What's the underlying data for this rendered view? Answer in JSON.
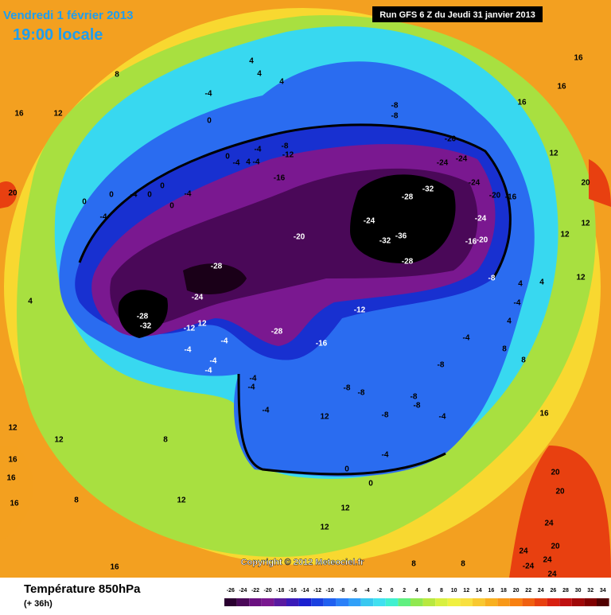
{
  "header": {
    "date": "Vendredi 1 février 2013",
    "local_time": "19:00 locale",
    "run": "Run GFS 6 Z du Jeudi 31 janvier 2013"
  },
  "footer": {
    "parameter": "Température 850hPa",
    "lead_time": "(+ 36h)",
    "copyright": "Copyright © 2012 Meteociel.fr"
  },
  "colorbar": {
    "ticks": [
      -26,
      -24,
      -22,
      -20,
      -18,
      -16,
      -14,
      -12,
      -10,
      -8,
      -6,
      -4,
      -2,
      0,
      2,
      4,
      6,
      8,
      10,
      12,
      14,
      16,
      18,
      20,
      22,
      24,
      26,
      28,
      30,
      32,
      34
    ],
    "colors": [
      "#2a0030",
      "#4a0858",
      "#6a1080",
      "#7a1890",
      "#5a1aa0",
      "#3a1ab8",
      "#1a20d0",
      "#1a40e0",
      "#2060f0",
      "#2a80f8",
      "#30a0f8",
      "#38c8f0",
      "#40e0f0",
      "#40f0d0",
      "#60f080",
      "#90e850",
      "#b8e840",
      "#d8f040",
      "#f0f040",
      "#f8e040",
      "#f8c830",
      "#f8b020",
      "#f89818",
      "#f88010",
      "#f06010",
      "#e84010",
      "#d82010",
      "#c01010",
      "#a00808",
      "#800000",
      "#500000"
    ]
  },
  "map": {
    "contour_labels": [
      "8",
      "16",
      "12",
      "0",
      "-4",
      "4",
      "4",
      "4",
      "-8",
      "-8",
      "-8",
      "-12",
      "-4",
      "0",
      "-4",
      "4",
      "-4",
      "-16",
      "-20",
      "-24",
      "-24",
      "-24",
      "-20",
      "-16",
      "-28",
      "-32",
      "-24",
      "-20",
      "-32",
      "-36",
      "-28",
      "-24",
      "-16",
      "-20",
      "-8",
      "-28",
      "-24",
      "-28",
      "-32",
      "-12",
      "12",
      "-4",
      "-4",
      "-4",
      "-4",
      "-28",
      "-16",
      "-12",
      "-4",
      "-8",
      "-8",
      "-8",
      "-8",
      "-8",
      "-8",
      "-4",
      "12",
      "-4",
      "-4",
      "-4",
      "-4",
      "0",
      "0",
      "12",
      "12",
      "8",
      "12",
      "8",
      "12",
      "16",
      "16",
      "16",
      "16",
      "12",
      "4",
      "0",
      "-4",
      "0",
      "0",
      "-4",
      "0",
      "-4",
      "0",
      "16",
      "16",
      "16",
      "12",
      "12",
      "12",
      "12",
      "4",
      "4",
      "-4",
      "4",
      "8",
      "8",
      "16",
      "20",
      "20",
      "24",
      "20",
      "24",
      "24",
      "-24",
      "24",
      "20",
      "20",
      "8",
      "8"
    ]
  }
}
